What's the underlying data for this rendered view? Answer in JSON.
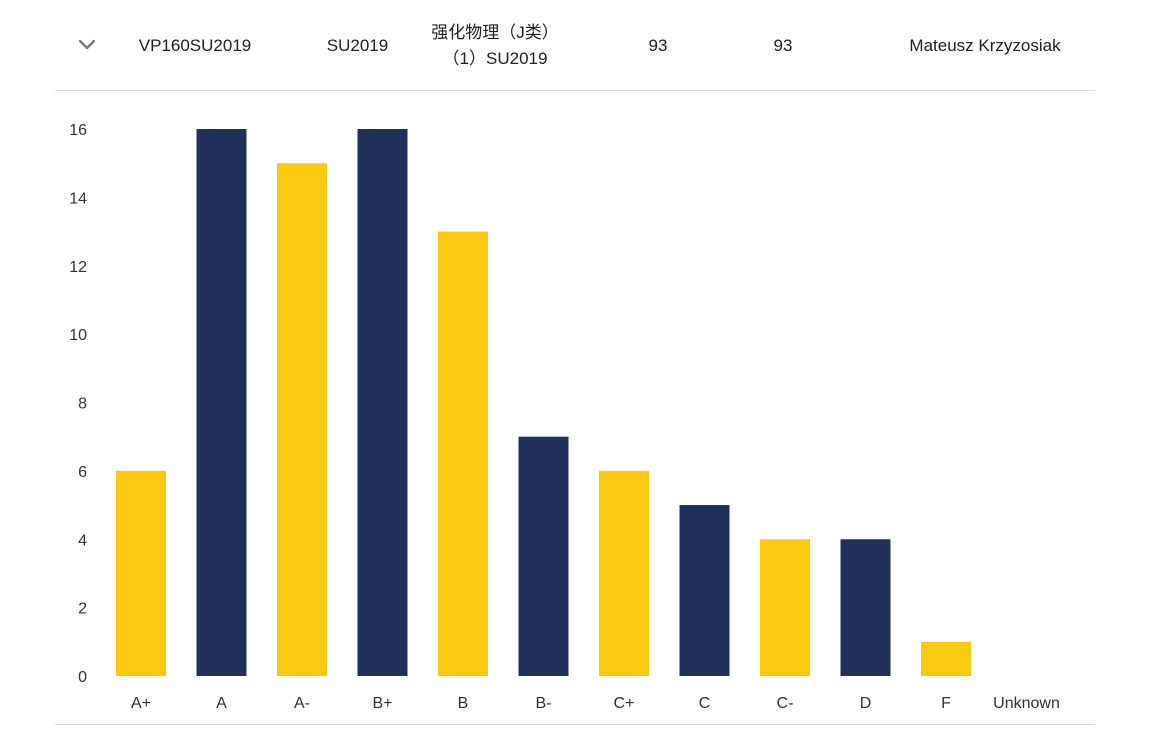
{
  "row": {
    "code": "VP160SU2019",
    "term": "SU2019",
    "course_name_line1": "强化物理（J类）",
    "course_name_line2": "（1）SU2019",
    "value_a": "93",
    "value_b": "93",
    "instructor": "Mateusz Krzyzosiak",
    "expand_icon": "chevron-down-icon"
  },
  "colors": {
    "yellow": "#FCC912",
    "navy": "#1F305B",
    "divider": "#dcdcdc"
  },
  "chart_data": {
    "type": "bar",
    "categories": [
      "A+",
      "A",
      "A-",
      "B+",
      "B",
      "B-",
      "C+",
      "C",
      "C-",
      "D",
      "F",
      "Unknown"
    ],
    "values": [
      6,
      16,
      15,
      16,
      13,
      7,
      6,
      5,
      4,
      4,
      1,
      0
    ],
    "bar_colors": [
      "yellow",
      "navy",
      "yellow",
      "navy",
      "yellow",
      "navy",
      "yellow",
      "navy",
      "yellow",
      "navy",
      "yellow",
      "navy"
    ],
    "ylim": [
      0,
      16
    ],
    "yticks": [
      0,
      2,
      4,
      6,
      8,
      10,
      12,
      14,
      16
    ],
    "grid": false,
    "title": "",
    "xlabel": "",
    "ylabel": ""
  }
}
